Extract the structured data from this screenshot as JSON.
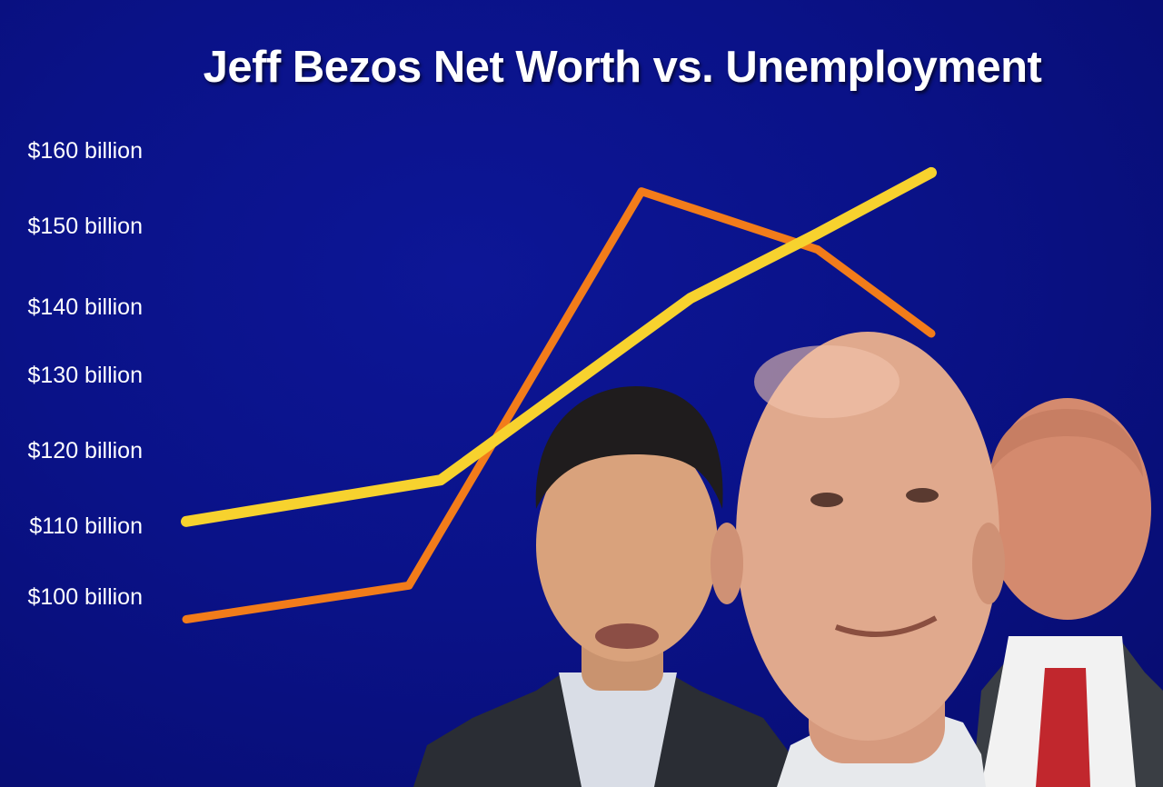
{
  "chart_data": {
    "type": "line",
    "title": "Jeff Bezos Net Worth vs. Unemployment",
    "y_tick_labels": [
      "$160 billion",
      "$150 billion",
      "$140 billion",
      "$130 billion",
      "$120 billion",
      "$110 billion",
      "$100 billion"
    ],
    "ylim": [
      96,
      160
    ],
    "x": [
      0,
      1,
      2,
      3,
      4
    ],
    "grid": false,
    "legend": "none",
    "series": [
      {
        "color": "#f7d22e",
        "values": [
          110.5,
          116,
          141,
          149,
          157
        ]
      },
      {
        "color": "#f27c1a",
        "values": [
          97,
          101.5,
          154.5,
          147,
          136
        ]
      }
    ]
  },
  "colors": {
    "background": "#0a1288",
    "title_text": "#ffffff",
    "yellow_line": "#f7d22e",
    "orange_line": "#f27c1a"
  }
}
